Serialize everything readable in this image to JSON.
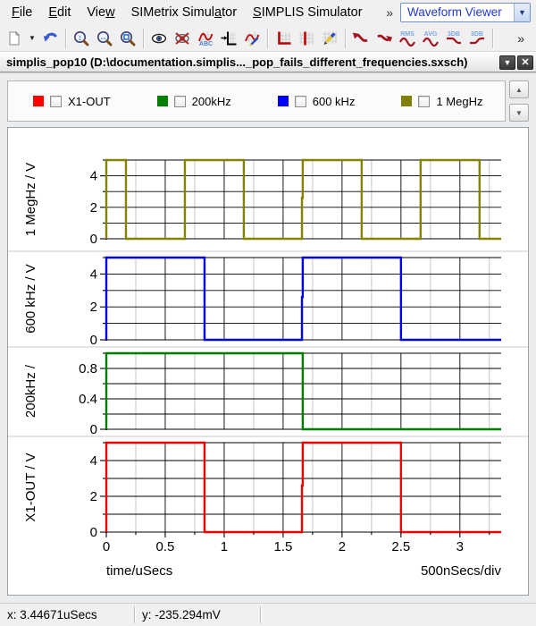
{
  "menu_bar": {
    "items": [
      {
        "pre": "",
        "key": "F",
        "post": "ile"
      },
      {
        "pre": "",
        "key": "E",
        "post": "dit"
      },
      {
        "pre": "Vie",
        "key": "w",
        "post": ""
      },
      {
        "pre": "SIMetrix Simul",
        "key": "a",
        "post": "tor"
      },
      {
        "pre": "",
        "key": "S",
        "post": "IMPLIS Simulator"
      }
    ],
    "overflow": "»",
    "mode_selector": {
      "value": "Waveform Viewer"
    }
  },
  "toolbar": {
    "labels": {
      "rms": "RMS",
      "avg": "AVG",
      "db_low": "3DB",
      "db_high": "3DB",
      "abc": "ABC"
    },
    "overflow": "»"
  },
  "tab": {
    "title": "simplis_pop10 (D:\\documentation.simplis..._pop_fails_different_frequencies.sxsch)"
  },
  "legend": {
    "items": [
      {
        "color": "#ff0000",
        "label": "X1-OUT",
        "checked": false
      },
      {
        "color": "#008000",
        "label": "200kHz",
        "checked": false
      },
      {
        "color": "#0000ff",
        "label": "600 kHz",
        "checked": false
      },
      {
        "color": "#808000",
        "label": "1 MegHz",
        "checked": false
      }
    ]
  },
  "chart_data": {
    "type": "line",
    "xlabel": "time/uSecs",
    "xdiv_label": "500nSecs/div",
    "xlim": [
      0,
      3.35
    ],
    "xticks": [
      0,
      0.5,
      1,
      1.5,
      2,
      2.5,
      3
    ],
    "xtick_labels": [
      "0",
      "0.5",
      "1",
      "1.5",
      "2",
      "2.5",
      "3"
    ],
    "minor_x_step": 0.25,
    "grid": {
      "major_color": "#000000",
      "minor_color": "#c4c4c4",
      "separator_color": "#c8c8c8"
    },
    "plots": [
      {
        "name": "1 MegHz",
        "ylabel": "1 MegHz / V",
        "color": "#838300",
        "ylim": [
          0,
          5
        ],
        "ygrid_step": 1,
        "yticks": [
          0,
          2,
          4
        ],
        "steps": [
          [
            0,
            0
          ],
          [
            0,
            5
          ],
          [
            0.1667,
            0
          ],
          [
            0.6667,
            5
          ],
          [
            1.1667,
            0
          ],
          [
            1.66,
            2.6
          ],
          [
            1.6667,
            5
          ],
          [
            2.1667,
            0
          ],
          [
            2.6667,
            5
          ],
          [
            3.1667,
            0
          ]
        ]
      },
      {
        "name": "600 kHz",
        "ylabel": "600 kHz / V",
        "color": "#0000ee",
        "ylim": [
          0,
          5
        ],
        "ygrid_step": 1,
        "yticks": [
          0,
          2,
          4
        ],
        "steps": [
          [
            0,
            0
          ],
          [
            0,
            5
          ],
          [
            0.8333,
            0
          ],
          [
            1.66,
            2.6
          ],
          [
            1.6667,
            5
          ],
          [
            2.5,
            0
          ]
        ]
      },
      {
        "name": "200kHz",
        "ylabel": "200kHz /",
        "color": "#007d00",
        "ylim": [
          0,
          1
        ],
        "ygrid_step": 0.2,
        "yticks": [
          0,
          0.4,
          0.8
        ],
        "steps": [
          [
            0,
            0
          ],
          [
            0,
            1
          ],
          [
            1.6667,
            0
          ]
        ]
      },
      {
        "name": "X1-OUT",
        "ylabel": "X1-OUT / V",
        "color": "#ee0000",
        "ylim": [
          0,
          5
        ],
        "ygrid_step": 1,
        "yticks": [
          0,
          2,
          4
        ],
        "steps": [
          [
            0,
            0
          ],
          [
            0,
            5
          ],
          [
            0.8333,
            0
          ],
          [
            1.66,
            2.6
          ],
          [
            1.6667,
            5
          ],
          [
            2.5,
            0
          ]
        ]
      }
    ]
  },
  "status_bar": {
    "x_readout": "x: 3.44671uSecs",
    "y_readout": "y: -235.294mV"
  }
}
